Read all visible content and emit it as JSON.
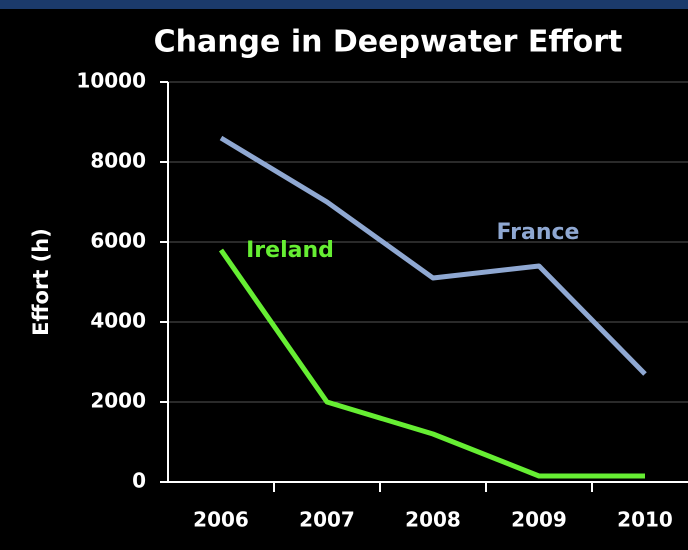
{
  "chart_data": {
    "type": "line",
    "title": "Change in Deepwater Effort",
    "y_label": "Effort (h)",
    "categories": [
      "2006",
      "2007",
      "2008",
      "2009",
      "2010"
    ],
    "series": [
      {
        "name": "France",
        "color": "#8fa8d2",
        "values": [
          8600,
          7000,
          5100,
          5400,
          2700
        ]
      },
      {
        "name": "Ireland",
        "color": "#66ee33",
        "values": [
          5800,
          2000,
          1200,
          150,
          150
        ]
      }
    ],
    "ylim": [
      0,
      10000
    ],
    "yticks": [
      0,
      2000,
      4000,
      6000,
      8000,
      10000
    ],
    "grid": true
  }
}
